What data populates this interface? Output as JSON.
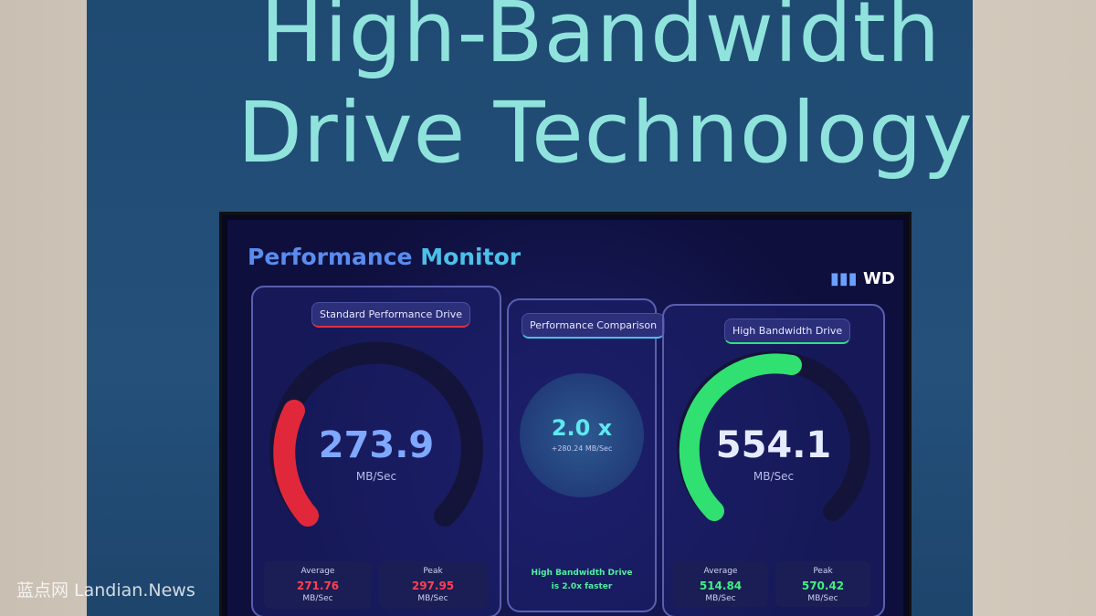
{
  "sign": {
    "title_line1": "High-Bandwidth",
    "title_line2": "Drive Technology"
  },
  "monitor": {
    "title_part1": "Performance",
    "title_part2": "Monitor",
    "logo": "WD",
    "standard": {
      "label": "Standard Performance Drive",
      "value": 273.9,
      "unit": "MB/Sec",
      "average": {
        "label": "Average",
        "value": 271.76,
        "unit": "MB/Sec"
      },
      "peak": {
        "label": "Peak",
        "value": 297.95,
        "unit": "MB/Sec"
      }
    },
    "comparison": {
      "label": "Performance Comparison",
      "value": "2.0 x",
      "sub": "+280.24 MB/Sec",
      "footer": "High Bandwidth Drive is 2.0x faster"
    },
    "high": {
      "label": "High Bandwidth Drive",
      "value": 554.1,
      "unit": "MB/Sec",
      "average": {
        "label": "Average",
        "value": 514.84,
        "unit": "MB/Sec"
      },
      "peak": {
        "label": "Peak",
        "value": 570.42,
        "unit": "MB/Sec"
      }
    }
  },
  "watermark": "蓝点网 Landian.News"
}
